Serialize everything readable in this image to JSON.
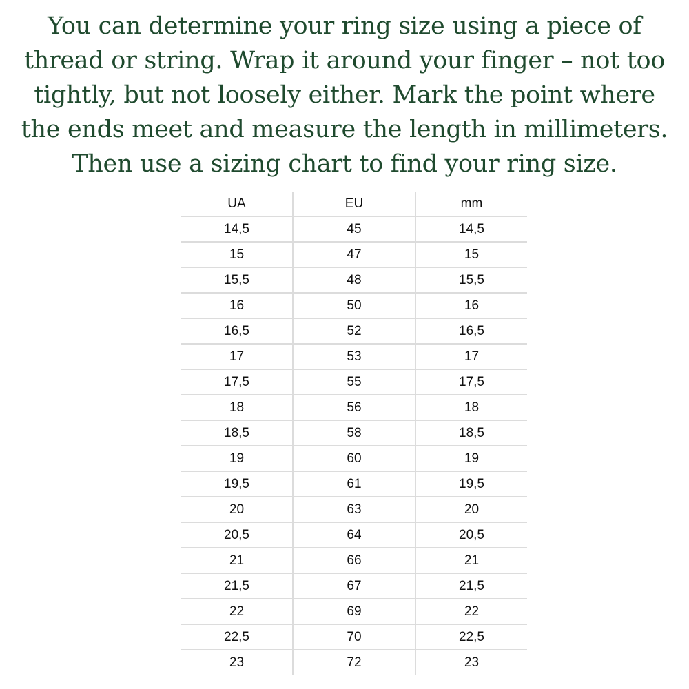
{
  "intro": {
    "lines": [
      "You can determine your ring size using a piece of",
      "thread or string. Wrap it around your finger – not too",
      "tightly, but not loosely either. Mark the point where",
      "the ends meet and measure the length in millimeters.",
      "Then use a sizing chart to find your ring size."
    ],
    "color": "#1f4a2e"
  },
  "table": {
    "headers": [
      "UA",
      "EU",
      "mm"
    ],
    "rows": [
      [
        "14,5",
        "45",
        "14,5"
      ],
      [
        "15",
        "47",
        "15"
      ],
      [
        "15,5",
        "48",
        "15,5"
      ],
      [
        "16",
        "50",
        "16"
      ],
      [
        "16,5",
        "52",
        "16,5"
      ],
      [
        "17",
        "53",
        "17"
      ],
      [
        "17,5",
        "55",
        "17,5"
      ],
      [
        "18",
        "56",
        "18"
      ],
      [
        "18,5",
        "58",
        "18,5"
      ],
      [
        "19",
        "60",
        "19"
      ],
      [
        "19,5",
        "61",
        "19,5"
      ],
      [
        "20",
        "63",
        "20"
      ],
      [
        "20,5",
        "64",
        "20,5"
      ],
      [
        "21",
        "66",
        "21"
      ],
      [
        "21,5",
        "67",
        "21,5"
      ],
      [
        "22",
        "69",
        "22"
      ],
      [
        "22,5",
        "70",
        "22,5"
      ],
      [
        "23",
        "72",
        "23"
      ]
    ]
  }
}
